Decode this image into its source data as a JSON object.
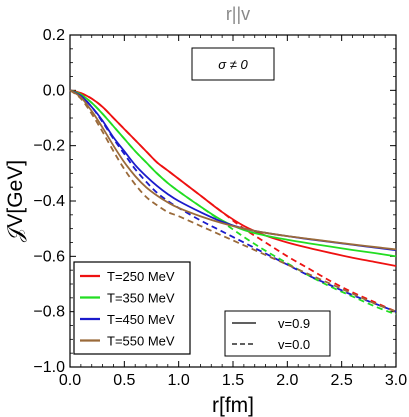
{
  "chart_data": {
    "type": "line",
    "title": "r||v",
    "xlabel": "r[fm]",
    "ylabel": "𝒥V[GeV]",
    "xlim": [
      0,
      3
    ],
    "ylim": [
      -1.0,
      0.2
    ],
    "xticks": [
      "0.0",
      "0.5",
      "1.0",
      "1.5",
      "2.0",
      "2.5",
      "3.0"
    ],
    "yticks": [
      "0.2",
      "0.0",
      "−0.2",
      "−0.4",
      "−0.6",
      "−0.8",
      "−1.0"
    ],
    "annotation": "σ ≠ 0",
    "legend_temperature": [
      {
        "label": "T=250 MeV",
        "color": "#ee1111"
      },
      {
        "label": "T=350 MeV",
        "color": "#22dd22"
      },
      {
        "label": "T=450 MeV",
        "color": "#1a1acc"
      },
      {
        "label": "T=550 MeV",
        "color": "#9a6a3a"
      }
    ],
    "legend_velocity": [
      {
        "label": "v=0.9",
        "dash": "solid"
      },
      {
        "label": "v=0.0",
        "dash": "dashed"
      }
    ],
    "series": [
      {
        "name": "T=250 MeV, v=0.9",
        "color": "#ee1111",
        "dash": "solid",
        "x": [
          0,
          0.1,
          0.2,
          0.3,
          0.4,
          0.5,
          0.6,
          0.7,
          0.8,
          0.9,
          1.0,
          1.2,
          1.4,
          1.6,
          1.8,
          2.0,
          2.2,
          2.4,
          2.6,
          2.8,
          3.0
        ],
        "y": [
          0,
          -0.01,
          -0.03,
          -0.06,
          -0.1,
          -0.14,
          -0.18,
          -0.22,
          -0.26,
          -0.29,
          -0.32,
          -0.38,
          -0.44,
          -0.49,
          -0.525,
          -0.55,
          -0.57,
          -0.588,
          -0.605,
          -0.62,
          -0.635
        ]
      },
      {
        "name": "T=250 MeV, v=0.0",
        "color": "#ee1111",
        "dash": "dashed",
        "x": [
          0,
          0.1,
          0.2,
          0.3,
          0.4,
          0.5,
          0.6,
          0.7,
          0.8,
          0.9,
          1.0,
          1.2,
          1.4,
          1.6,
          1.8,
          2.0,
          2.2,
          2.4,
          2.6,
          2.8,
          3.0
        ],
        "y": [
          0,
          -0.01,
          -0.03,
          -0.06,
          -0.1,
          -0.14,
          -0.18,
          -0.22,
          -0.26,
          -0.29,
          -0.32,
          -0.38,
          -0.44,
          -0.5,
          -0.55,
          -0.6,
          -0.645,
          -0.69,
          -0.73,
          -0.765,
          -0.8
        ]
      },
      {
        "name": "T=350 MeV, v=0.9",
        "color": "#22dd22",
        "dash": "solid",
        "x": [
          0,
          0.1,
          0.2,
          0.3,
          0.4,
          0.5,
          0.6,
          0.7,
          0.8,
          0.9,
          1.0,
          1.2,
          1.4,
          1.6,
          1.8,
          2.0,
          2.2,
          2.4,
          2.6,
          2.8,
          3.0
        ],
        "y": [
          0,
          -0.015,
          -0.045,
          -0.085,
          -0.13,
          -0.175,
          -0.22,
          -0.26,
          -0.3,
          -0.335,
          -0.365,
          -0.42,
          -0.47,
          -0.505,
          -0.525,
          -0.54,
          -0.553,
          -0.565,
          -0.577,
          -0.588,
          -0.6
        ]
      },
      {
        "name": "T=350 MeV, v=0.0",
        "color": "#22dd22",
        "dash": "dashed",
        "x": [
          0,
          0.1,
          0.2,
          0.3,
          0.4,
          0.5,
          0.6,
          0.7,
          0.8,
          0.9,
          1.0,
          1.2,
          1.4,
          1.6,
          1.8,
          2.0,
          2.2,
          2.4,
          2.6,
          2.8,
          3.0
        ],
        "y": [
          0,
          -0.015,
          -0.045,
          -0.085,
          -0.13,
          -0.175,
          -0.22,
          -0.26,
          -0.3,
          -0.335,
          -0.365,
          -0.42,
          -0.475,
          -0.53,
          -0.58,
          -0.625,
          -0.67,
          -0.71,
          -0.745,
          -0.78,
          -0.81
        ]
      },
      {
        "name": "T=450 MeV, v=0.9",
        "color": "#1a1acc",
        "dash": "solid",
        "x": [
          0,
          0.1,
          0.2,
          0.3,
          0.4,
          0.5,
          0.6,
          0.7,
          0.8,
          0.9,
          1.0,
          1.2,
          1.4,
          1.6,
          1.8,
          2.0,
          2.2,
          2.4,
          2.6,
          2.8,
          3.0
        ],
        "y": [
          0,
          -0.02,
          -0.06,
          -0.11,
          -0.17,
          -0.22,
          -0.27,
          -0.31,
          -0.345,
          -0.375,
          -0.4,
          -0.44,
          -0.475,
          -0.5,
          -0.515,
          -0.527,
          -0.538,
          -0.548,
          -0.558,
          -0.568,
          -0.578
        ]
      },
      {
        "name": "T=450 MeV, v=0.0",
        "color": "#1a1acc",
        "dash": "dashed",
        "x": [
          0,
          0.1,
          0.2,
          0.3,
          0.4,
          0.5,
          0.6,
          0.7,
          0.8,
          0.9,
          1.0,
          1.2,
          1.4,
          1.6,
          1.8,
          2.0,
          2.2,
          2.4,
          2.6,
          2.8,
          3.0
        ],
        "y": [
          0,
          -0.02,
          -0.06,
          -0.115,
          -0.175,
          -0.23,
          -0.285,
          -0.33,
          -0.37,
          -0.4,
          -0.425,
          -0.47,
          -0.51,
          -0.55,
          -0.59,
          -0.63,
          -0.67,
          -0.705,
          -0.74,
          -0.77,
          -0.8
        ]
      },
      {
        "name": "T=550 MeV, v=0.9",
        "color": "#9a6a3a",
        "dash": "solid",
        "x": [
          0,
          0.1,
          0.2,
          0.3,
          0.4,
          0.5,
          0.6,
          0.7,
          0.8,
          0.9,
          1.0,
          1.2,
          1.4,
          1.6,
          1.8,
          2.0,
          2.2,
          2.4,
          2.6,
          2.8,
          3.0
        ],
        "y": [
          0,
          -0.025,
          -0.075,
          -0.135,
          -0.2,
          -0.26,
          -0.31,
          -0.35,
          -0.38,
          -0.405,
          -0.425,
          -0.455,
          -0.48,
          -0.5,
          -0.515,
          -0.527,
          -0.537,
          -0.547,
          -0.557,
          -0.566,
          -0.575
        ]
      },
      {
        "name": "T=550 MeV, v=0.0",
        "color": "#9a6a3a",
        "dash": "dashed",
        "x": [
          0,
          0.1,
          0.2,
          0.3,
          0.4,
          0.5,
          0.6,
          0.7,
          0.8,
          0.9,
          1.0,
          1.2,
          1.4,
          1.6,
          1.8,
          2.0,
          2.2,
          2.4,
          2.6,
          2.8,
          3.0
        ],
        "y": [
          0,
          -0.03,
          -0.085,
          -0.15,
          -0.22,
          -0.285,
          -0.34,
          -0.385,
          -0.415,
          -0.44,
          -0.455,
          -0.49,
          -0.525,
          -0.56,
          -0.595,
          -0.63,
          -0.665,
          -0.7,
          -0.735,
          -0.77,
          -0.8
        ]
      }
    ]
  }
}
